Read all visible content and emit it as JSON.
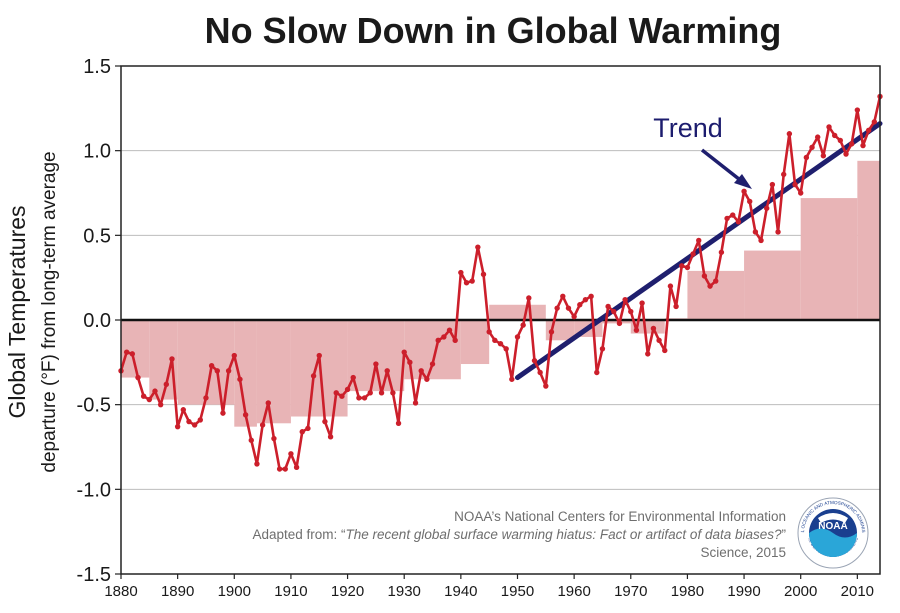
{
  "chart_data": {
    "type": "line",
    "title": "No Slow Down in Global Warming",
    "ylabel_line1": "Global Temperatures",
    "ylabel_line2": "departure (°F) from long-term average",
    "xlabel": "",
    "xlim": [
      1880,
      2014
    ],
    "ylim": [
      -1.5,
      1.5
    ],
    "yticks": [
      1.5,
      1.0,
      0.5,
      0.0,
      -0.5,
      -1.0,
      -1.5
    ],
    "ytick_labels": [
      "1.5",
      "1.0",
      "0.5",
      "0.0",
      "-0.5",
      "-1.0",
      "-1.5"
    ],
    "xticks": [
      1880,
      1890,
      1900,
      1910,
      1920,
      1930,
      1940,
      1950,
      1960,
      1970,
      1980,
      1990,
      2000,
      2010
    ],
    "grid": true,
    "annotation": "Trend",
    "series": [
      {
        "type": "line",
        "color": "#cc1f2b",
        "x": [
          1880,
          1881,
          1882,
          1883,
          1884,
          1885,
          1886,
          1887,
          1888,
          1889,
          1890,
          1891,
          1892,
          1893,
          1894,
          1895,
          1896,
          1897,
          1898,
          1899,
          1900,
          1901,
          1902,
          1903,
          1904,
          1905,
          1906,
          1907,
          1908,
          1909,
          1910,
          1911,
          1912,
          1913,
          1914,
          1915,
          1916,
          1917,
          1918,
          1919,
          1920,
          1921,
          1922,
          1923,
          1924,
          1925,
          1926,
          1927,
          1928,
          1929,
          1930,
          1931,
          1932,
          1933,
          1934,
          1935,
          1936,
          1937,
          1938,
          1939,
          1940,
          1941,
          1942,
          1943,
          1944,
          1945,
          1946,
          1947,
          1948,
          1949,
          1950,
          1951,
          1952,
          1953,
          1954,
          1955,
          1956,
          1957,
          1958,
          1959,
          1960,
          1961,
          1962,
          1963,
          1964,
          1965,
          1966,
          1967,
          1968,
          1969,
          1970,
          1971,
          1972,
          1973,
          1974,
          1975,
          1976,
          1977,
          1978,
          1979,
          1980,
          1981,
          1982,
          1983,
          1984,
          1985,
          1986,
          1987,
          1988,
          1989,
          1990,
          1991,
          1992,
          1993,
          1994,
          1995,
          1996,
          1997,
          1998,
          1999,
          2000,
          2001,
          2002,
          2003,
          2004,
          2005,
          2006,
          2007,
          2008,
          2009,
          2010,
          2011,
          2012,
          2013,
          2014
        ],
        "values": [
          -0.3,
          -0.19,
          -0.2,
          -0.34,
          -0.45,
          -0.47,
          -0.42,
          -0.5,
          -0.38,
          -0.23,
          -0.63,
          -0.53,
          -0.6,
          -0.62,
          -0.59,
          -0.46,
          -0.27,
          -0.3,
          -0.55,
          -0.3,
          -0.21,
          -0.35,
          -0.56,
          -0.71,
          -0.85,
          -0.62,
          -0.49,
          -0.7,
          -0.88,
          -0.88,
          -0.79,
          -0.87,
          -0.66,
          -0.64,
          -0.33,
          -0.21,
          -0.6,
          -0.69,
          -0.43,
          -0.45,
          -0.41,
          -0.34,
          -0.46,
          -0.46,
          -0.43,
          -0.26,
          -0.43,
          -0.3,
          -0.43,
          -0.61,
          -0.19,
          -0.25,
          -0.49,
          -0.3,
          -0.35,
          -0.26,
          -0.12,
          -0.1,
          -0.06,
          -0.12,
          0.28,
          0.22,
          0.23,
          0.43,
          0.27,
          -0.07,
          -0.12,
          -0.14,
          -0.17,
          -0.35,
          -0.1,
          -0.03,
          0.13,
          -0.24,
          -0.31,
          -0.39,
          -0.07,
          0.07,
          0.14,
          0.07,
          0.02,
          0.09,
          0.12,
          0.14,
          -0.31,
          -0.17,
          0.08,
          0.05,
          -0.02,
          0.12,
          0.05,
          -0.06,
          0.1,
          -0.2,
          -0.05,
          -0.12,
          -0.18,
          0.2,
          0.08,
          0.32,
          0.31,
          0.39,
          0.47,
          0.26,
          0.2,
          0.23,
          0.4,
          0.6,
          0.62,
          0.58,
          0.76,
          0.7,
          0.52,
          0.47,
          0.66,
          0.8,
          0.52,
          0.86,
          1.1,
          0.8,
          0.75,
          0.96,
          1.02,
          1.08,
          0.97,
          1.14,
          1.09,
          1.06,
          0.98,
          1.04,
          1.24,
          1.03,
          1.12,
          1.17,
          1.32
        ]
      },
      {
        "type": "step-area",
        "color": "#e8b4b6",
        "x_edges": [
          1880,
          1885,
          1890,
          1900,
          1904,
          1910,
          1920,
          1930,
          1940,
          1945,
          1950,
          1955,
          1960,
          1965,
          1970,
          1976,
          1980,
          1990,
          2000,
          2010,
          2014
        ],
        "values": [
          -0.34,
          -0.47,
          -0.5,
          -0.63,
          -0.61,
          -0.57,
          -0.42,
          -0.35,
          -0.26,
          0.09,
          0.09,
          -0.12,
          -0.1,
          -0.02,
          -0.08,
          0.01,
          0.29,
          0.41,
          0.72,
          0.94
        ]
      },
      {
        "type": "line",
        "name": "Trend",
        "color": "#1f1f6e",
        "x": [
          1950,
          2014
        ],
        "values": [
          -0.34,
          1.16
        ]
      }
    ]
  },
  "credits": {
    "line1": "NOAA’s National Centers for Environmental Information",
    "line2_prefix": "Adapted from: “",
    "line2_italic": "The recent global surface warming hiatus: Fact or artifact of data biases?",
    "line2_suffix": "”",
    "line3": "Science, 2015"
  },
  "logo": {
    "text": "NOAA",
    "ring_text": "NATIONAL OCEANIC AND ATMOSPHERIC ADMINISTRATION",
    "ring_text_bottom": "U.S. DEPARTMENT OF COMMERCE",
    "outer_color": "#1a3f8f",
    "inner_color": "#2aa6d8"
  }
}
